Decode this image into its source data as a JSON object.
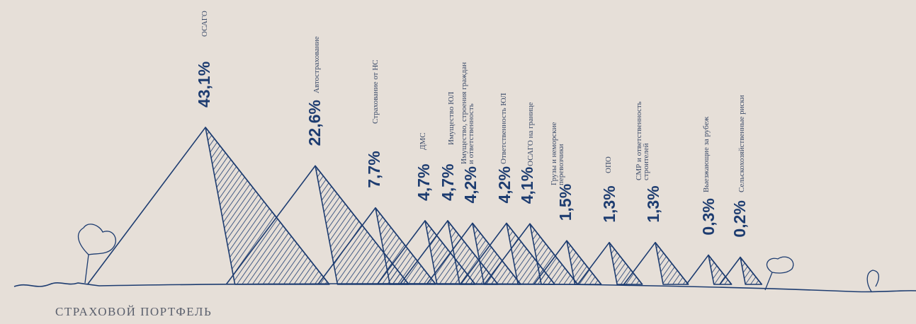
{
  "chart_data": {
    "type": "mountain",
    "title": "СТРАХОВОЙ ПОРТФЕЛЬ",
    "categories": [
      "ОСАГО",
      "Автострахование",
      "Страхование от НС",
      "ДМС",
      "Имущество ЮЛ",
      "Имущество, строения граждан и ответственность",
      "Ответственность ЮЛ",
      "ОСАГО на границе",
      "Грузы и неморские перевозчики",
      "ОПО",
      "СМР и ответственность строителей",
      "Выезжающие за рубеж",
      "Сельскохозяйственные риски"
    ],
    "values": [
      43.1,
      22.6,
      7.7,
      4.7,
      4.7,
      4.2,
      4.2,
      4.1,
      1.5,
      1.3,
      1.3,
      0.3,
      0.2
    ],
    "value_labels": [
      "43,1%",
      "22,6%",
      "7,7%",
      "4,7%",
      "4,7%",
      "4,2%",
      "4,2%",
      "4,1%",
      "1,5%",
      "1,3%",
      "1,3%",
      "0,3%",
      "0,2%"
    ],
    "color": "#1d3c70"
  }
}
